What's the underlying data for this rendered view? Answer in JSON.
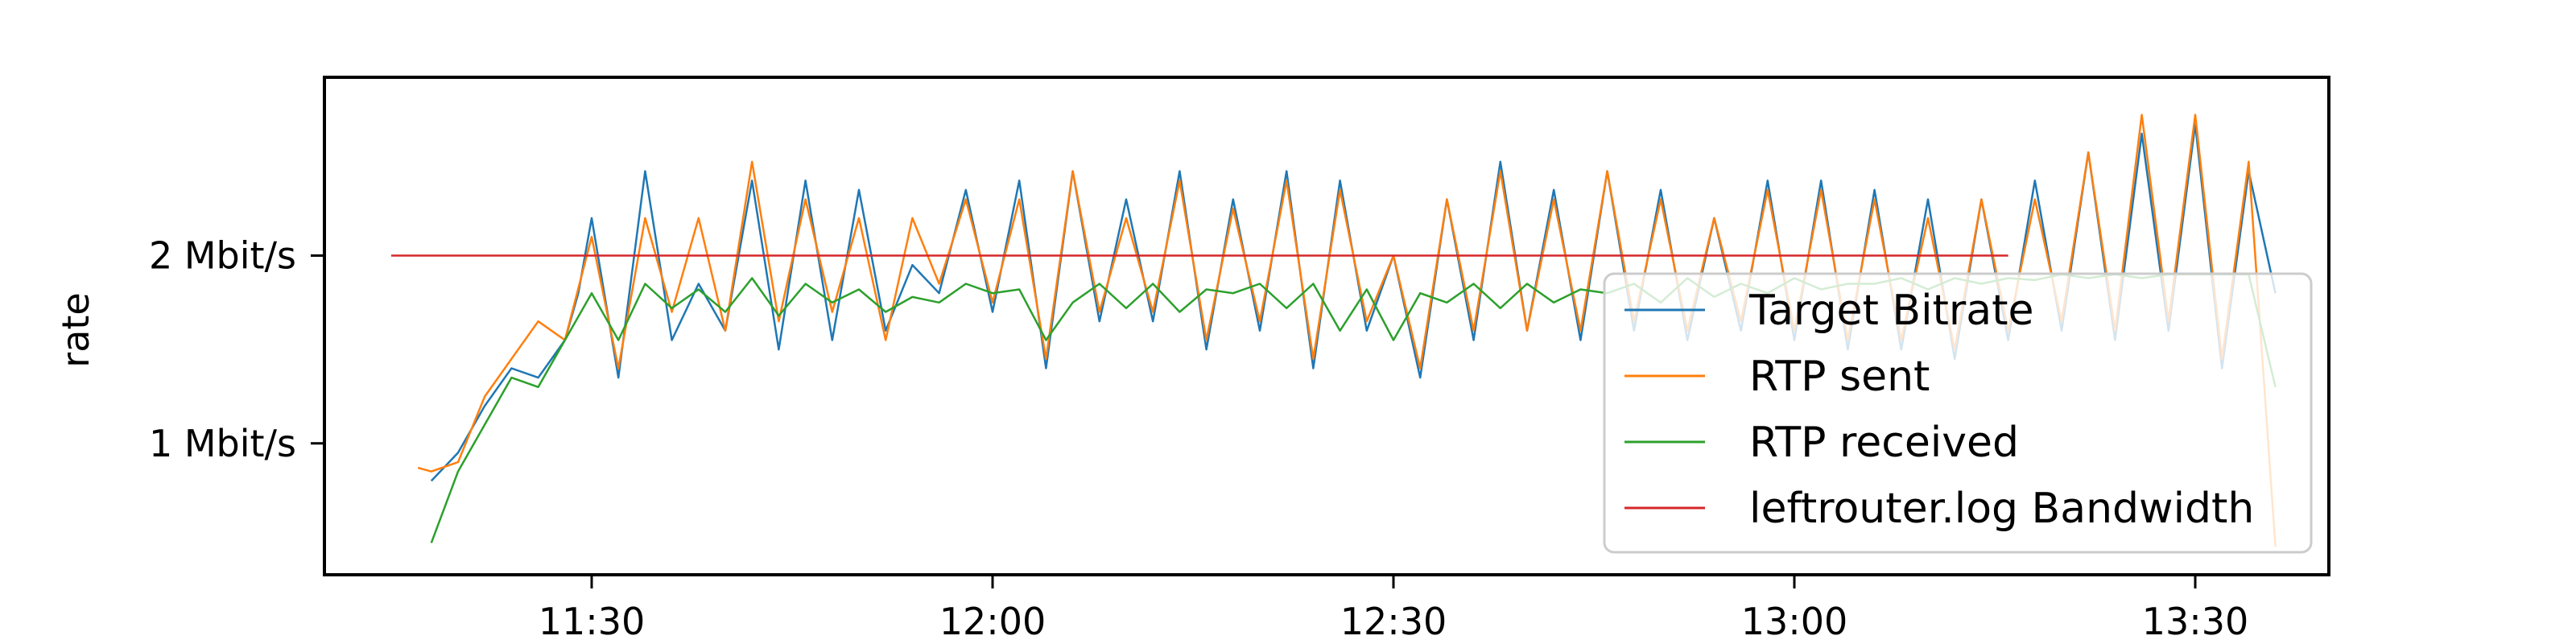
{
  "chart_data": {
    "type": "line",
    "title": "",
    "xlabel": "",
    "ylabel": "rate",
    "x_unit": "time",
    "xlim": [
      "11:10",
      "13:40"
    ],
    "ylim_mbit": [
      0.3,
      2.95
    ],
    "x_ticks": [
      "11:30",
      "12:00",
      "12:30",
      "13:00",
      "13:30"
    ],
    "y_ticks": [
      {
        "value": 1,
        "label": "1 Mbit/s"
      },
      {
        "value": 2,
        "label": "2 Mbit/s"
      }
    ],
    "grid": false,
    "legend_position": "lower-right",
    "series": [
      {
        "name": "Target Bitrate",
        "color": "#1f77b4",
        "x": [
          "11:18",
          "11:20",
          "11:22",
          "11:24",
          "11:26",
          "11:28",
          "11:29",
          "11:30",
          "11:32",
          "11:34",
          "11:36",
          "11:38",
          "11:40",
          "11:42",
          "11:44",
          "11:46",
          "11:48",
          "11:50",
          "11:52",
          "11:54",
          "11:56",
          "11:58",
          "12:00",
          "12:02",
          "12:04",
          "12:06",
          "12:08",
          "12:10",
          "12:12",
          "12:14",
          "12:16",
          "12:18",
          "12:20",
          "12:22",
          "12:24",
          "12:26",
          "12:28",
          "12:30",
          "12:32",
          "12:34",
          "12:36",
          "12:38",
          "12:40",
          "12:42",
          "12:44",
          "12:46",
          "12:48",
          "12:50",
          "12:52",
          "12:54",
          "12:56",
          "12:58",
          "13:00",
          "13:02",
          "13:04",
          "13:06",
          "13:08",
          "13:10",
          "13:12",
          "13:14",
          "13:16",
          "13:18",
          "13:20",
          "13:22",
          "13:24",
          "13:26",
          "13:28",
          "13:30",
          "13:32",
          "13:34",
          "13:36"
        ],
        "values": [
          0.8,
          0.95,
          1.2,
          1.4,
          1.35,
          1.55,
          1.8,
          2.2,
          1.35,
          2.45,
          1.55,
          1.85,
          1.6,
          2.4,
          1.5,
          2.4,
          1.55,
          2.35,
          1.6,
          1.95,
          1.8,
          2.35,
          1.7,
          2.4,
          1.4,
          2.45,
          1.65,
          2.3,
          1.65,
          2.45,
          1.5,
          2.3,
          1.6,
          2.45,
          1.4,
          2.4,
          1.6,
          2.0,
          1.35,
          2.3,
          1.55,
          2.5,
          1.6,
          2.35,
          1.55,
          2.45,
          1.6,
          2.35,
          1.55,
          2.2,
          1.6,
          2.4,
          1.55,
          2.4,
          1.5,
          2.35,
          1.5,
          2.3,
          1.45,
          2.3,
          1.55,
          2.4,
          1.6,
          2.55,
          1.55,
          2.65,
          1.6,
          2.7,
          1.4,
          2.45,
          1.8
        ]
      },
      {
        "name": "RTP sent",
        "color": "#ff7f0e",
        "x": [
          "11:17",
          "11:18",
          "11:20",
          "11:22",
          "11:24",
          "11:26",
          "11:28",
          "11:30",
          "11:32",
          "11:34",
          "11:36",
          "11:38",
          "11:40",
          "11:42",
          "11:44",
          "11:46",
          "11:48",
          "11:50",
          "11:52",
          "11:54",
          "11:56",
          "11:58",
          "12:00",
          "12:02",
          "12:04",
          "12:06",
          "12:08",
          "12:10",
          "12:12",
          "12:14",
          "12:16",
          "12:18",
          "12:20",
          "12:22",
          "12:24",
          "12:26",
          "12:28",
          "12:30",
          "12:32",
          "12:34",
          "12:36",
          "12:38",
          "12:40",
          "12:42",
          "12:44",
          "12:46",
          "12:48",
          "12:50",
          "12:52",
          "12:54",
          "12:56",
          "12:58",
          "13:00",
          "13:02",
          "13:04",
          "13:06",
          "13:08",
          "13:10",
          "13:12",
          "13:14",
          "13:16",
          "13:18",
          "13:20",
          "13:22",
          "13:24",
          "13:26",
          "13:28",
          "13:30",
          "13:32",
          "13:34",
          "13:36"
        ],
        "values": [
          0.87,
          0.85,
          0.9,
          1.25,
          1.45,
          1.65,
          1.55,
          2.1,
          1.4,
          2.2,
          1.7,
          2.2,
          1.6,
          2.5,
          1.65,
          2.3,
          1.7,
          2.2,
          1.55,
          2.2,
          1.85,
          2.3,
          1.75,
          2.3,
          1.45,
          2.45,
          1.7,
          2.2,
          1.7,
          2.4,
          1.55,
          2.25,
          1.65,
          2.4,
          1.45,
          2.35,
          1.65,
          2.0,
          1.4,
          2.3,
          1.6,
          2.45,
          1.6,
          2.3,
          1.6,
          2.45,
          1.65,
          2.3,
          1.6,
          2.2,
          1.65,
          2.35,
          1.6,
          2.35,
          1.55,
          2.3,
          1.55,
          2.2,
          1.5,
          2.3,
          1.6,
          2.3,
          1.65,
          2.55,
          1.6,
          2.75,
          1.65,
          2.75,
          1.45,
          2.5,
          0.45
        ]
      },
      {
        "name": "RTP received",
        "color": "#2ca02c",
        "x": [
          "11:18",
          "11:20",
          "11:22",
          "11:24",
          "11:26",
          "11:28",
          "11:30",
          "11:32",
          "11:34",
          "11:36",
          "11:38",
          "11:40",
          "11:42",
          "11:44",
          "11:46",
          "11:48",
          "11:50",
          "11:52",
          "11:54",
          "11:56",
          "11:58",
          "12:00",
          "12:02",
          "12:04",
          "12:06",
          "12:08",
          "12:10",
          "12:12",
          "12:14",
          "12:16",
          "12:18",
          "12:20",
          "12:22",
          "12:24",
          "12:26",
          "12:28",
          "12:30",
          "12:32",
          "12:34",
          "12:36",
          "12:38",
          "12:40",
          "12:42",
          "12:44",
          "12:46",
          "12:48",
          "12:50",
          "12:52",
          "12:54",
          "12:56",
          "12:58",
          "13:00",
          "13:02",
          "13:04",
          "13:06",
          "13:08",
          "13:10",
          "13:12",
          "13:14",
          "13:16",
          "13:18",
          "13:20",
          "13:22",
          "13:24",
          "13:26",
          "13:28",
          "13:30",
          "13:32",
          "13:34",
          "13:36"
        ],
        "values": [
          0.47,
          0.85,
          1.1,
          1.35,
          1.3,
          1.55,
          1.8,
          1.55,
          1.85,
          1.72,
          1.82,
          1.7,
          1.88,
          1.68,
          1.85,
          1.75,
          1.82,
          1.7,
          1.78,
          1.75,
          1.85,
          1.8,
          1.82,
          1.55,
          1.75,
          1.85,
          1.72,
          1.85,
          1.7,
          1.82,
          1.8,
          1.85,
          1.72,
          1.85,
          1.6,
          1.82,
          1.55,
          1.8,
          1.75,
          1.85,
          1.72,
          1.85,
          1.75,
          1.82,
          1.8,
          1.85,
          1.75,
          1.88,
          1.78,
          1.85,
          1.8,
          1.88,
          1.82,
          1.85,
          1.85,
          1.88,
          1.82,
          1.88,
          1.85,
          1.88,
          1.87,
          1.9,
          1.88,
          1.9,
          1.88,
          1.9,
          1.9,
          1.9,
          1.9,
          1.3
        ]
      },
      {
        "name": "leftrouter.log Bandwidth",
        "color": "#d62728",
        "x": [
          "11:15",
          "13:16"
        ],
        "values": [
          2.0,
          2.0
        ]
      }
    ]
  }
}
